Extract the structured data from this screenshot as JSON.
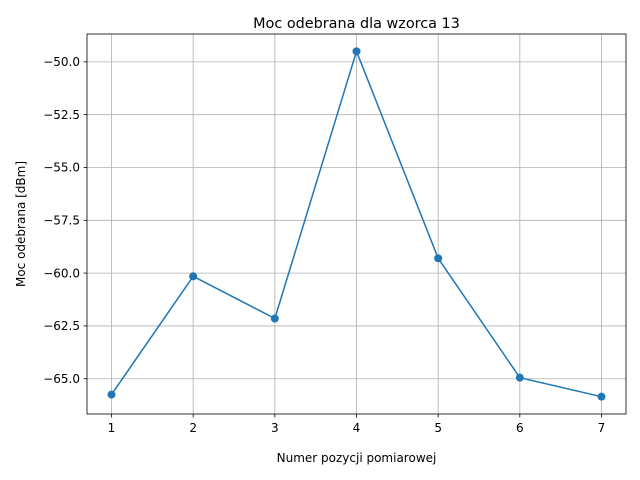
{
  "chart_data": {
    "type": "line",
    "title": "Moc odebrana dla wzorca 13",
    "xlabel": "Numer pozycji pomiarowej",
    "ylabel": "Moc odebrana [dBm]",
    "x": [
      1,
      2,
      3,
      4,
      5,
      6,
      7
    ],
    "series": [
      {
        "values": [
          -65.75,
          -60.15,
          -62.15,
          -49.5,
          -59.3,
          -64.95,
          -65.85
        ],
        "color": "#1f77b4",
        "marker": "circle"
      }
    ],
    "xticks": [
      1,
      2,
      3,
      4,
      5,
      6,
      7
    ],
    "xtick_labels": [
      "1",
      "2",
      "3",
      "4",
      "5",
      "6",
      "7"
    ],
    "yticks": [
      -65.0,
      -62.5,
      -60.0,
      -57.5,
      -55.0,
      -52.5,
      -50.0
    ],
    "ytick_labels": [
      "−65.0",
      "−62.5",
      "−60.0",
      "−57.5",
      "−55.0",
      "−52.5",
      "−50.0"
    ],
    "xlim": [
      0.7,
      7.3
    ],
    "ylim": [
      -66.67,
      -48.68
    ],
    "grid": true,
    "legend": null
  }
}
